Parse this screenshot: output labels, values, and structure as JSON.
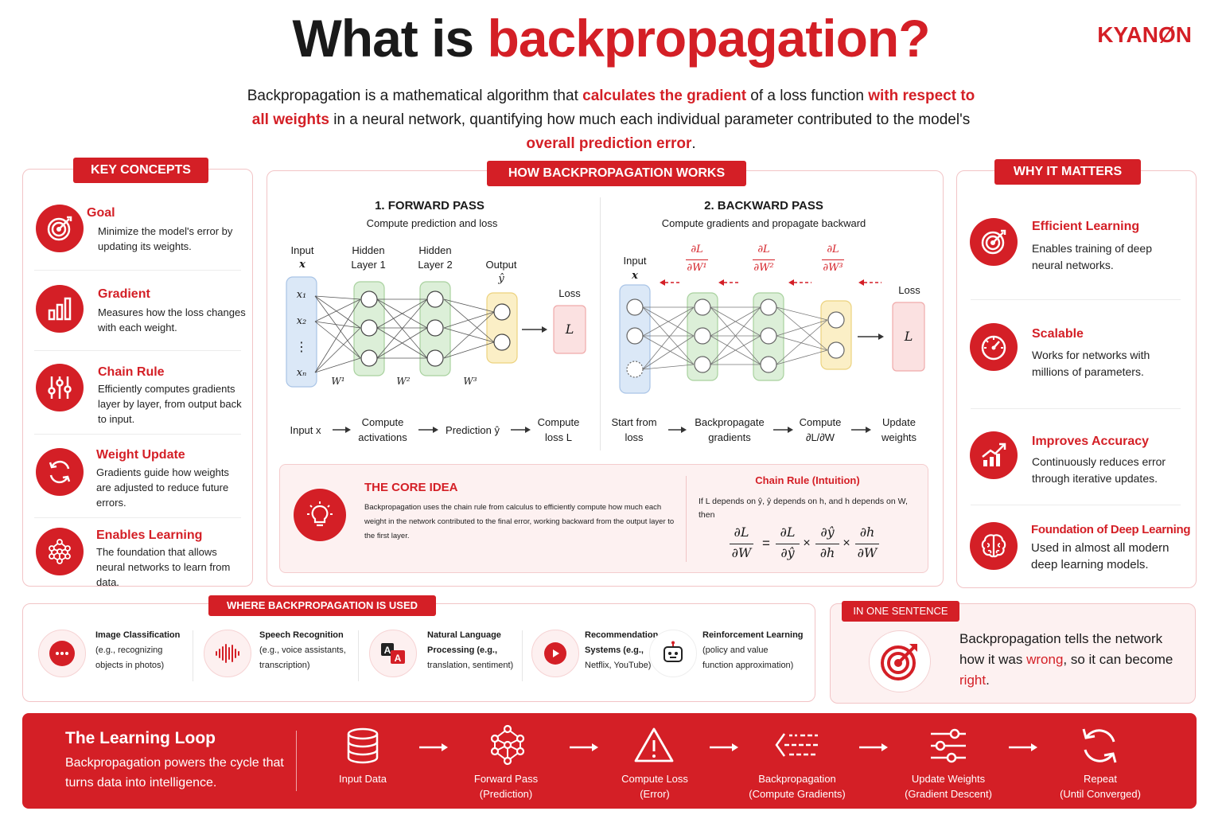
{
  "header": {
    "title_part1": "What is ",
    "title_part2": "backpropagation?",
    "logo": "KYANØN"
  },
  "intro": {
    "s1": "Backpropagation is a mathematical algorithm that ",
    "h1": "calculates the gradient",
    "s2": " of a loss function ",
    "h2": "with respect to all weights",
    "s3": " in a neural network, quantifying how much each individual parameter contributed to the model's ",
    "h3": "overall prediction error",
    "s4": "."
  },
  "key_concepts": {
    "tag": "KEY CONCEPTS",
    "items": [
      {
        "icon": "target-icon",
        "title": "Goal",
        "desc": "Minimize the model's error by updating its weights."
      },
      {
        "icon": "bar-chart-icon",
        "title": "Gradient",
        "desc": "Measures how the loss changes with each weight."
      },
      {
        "icon": "sliders-icon",
        "title": "Chain Rule",
        "desc": "Efficiently computes gradients layer by layer, from output back to input."
      },
      {
        "icon": "refresh-icon",
        "title": "Weight Update",
        "desc": "Gradients guide how weights are adjusted to reduce future errors."
      },
      {
        "icon": "network-icon",
        "title": "Enables Learning",
        "desc": "The foundation that allows neural networks to learn from data."
      }
    ]
  },
  "how": {
    "tag": "HOW BACKPROPAGATION WORKS",
    "forward": {
      "title": "1. FORWARD PASS",
      "subtitle": "Compute prediction and loss",
      "input_label": "Input",
      "input_var": "x",
      "hidden1": "Hidden Layer 1",
      "hidden2": "Hidden Layer 2",
      "output_label": "Output",
      "output_var": "ŷ",
      "loss_label": "Loss",
      "loss_var": "L",
      "x1": "x₁",
      "x2": "x₂",
      "dots": "⋮",
      "xn": "xₙ",
      "w1": "W¹",
      "w2": "W²",
      "w3": "W³",
      "flow": [
        "Input x",
        "Compute activations",
        "Prediction ŷ",
        "Compute loss L"
      ]
    },
    "backward": {
      "title": "2. BACKWARD PASS",
      "subtitle": "Compute gradients and propagate backward",
      "input_label": "Input",
      "input_var": "x",
      "loss_label": "Loss",
      "loss_var": "L",
      "g1_num": "∂L",
      "g1_den": "∂W¹",
      "g2_num": "∂L",
      "g2_den": "∂W²",
      "g3_num": "∂L",
      "g3_den": "∂W³",
      "flow": [
        "Start from loss",
        "Backpropagate gradients",
        "Compute ∂L/∂W",
        "Update weights"
      ]
    },
    "core": {
      "title": "THE CORE IDEA",
      "text": "Backpropagation uses the chain rule from calculus to efficiently compute how much each weight in the network contributed to the final error, working backward from the output layer to the first layer.",
      "chain_title": "Chain Rule (Intuition)",
      "chain_text": "If L depends on ŷ, ŷ depends on h, and h depends on W, then",
      "f_lhs_num": "∂L",
      "f_lhs_den": "∂W",
      "f_a_num": "∂L",
      "f_a_den": "∂ŷ",
      "f_b_num": "∂ŷ",
      "f_b_den": "∂h",
      "f_c_num": "∂h",
      "f_c_den": "∂W",
      "eq": "=",
      "times": "×"
    }
  },
  "why": {
    "tag": "WHY IT MATTERS",
    "items": [
      {
        "icon": "target-icon",
        "title": "Efficient Learning",
        "desc": "Enables training of deep neural networks."
      },
      {
        "icon": "gauge-icon",
        "title": "Scalable",
        "desc": "Works for networks with millions of parameters."
      },
      {
        "icon": "growth-chart-icon",
        "title": "Improves Accuracy",
        "desc": "Continuously reduces error through iterative updates."
      },
      {
        "icon": "brain-icon",
        "title": "Foundation of Deep Learning",
        "desc": "Used in almost all modern deep learning models."
      }
    ]
  },
  "used": {
    "tag": "WHERE BACKPROPAGATION IS USED",
    "items": [
      {
        "icon": "chat-icon",
        "title": "Image Classification",
        "desc": [
          "(e.g., recognizing",
          "objects in photos)"
        ]
      },
      {
        "icon": "audio-wave-icon",
        "title": "Speech Recognition",
        "desc": [
          "(e.g., voice assistants,",
          "transcription)"
        ]
      },
      {
        "icon": "translate-icon",
        "title": "Natural Language",
        "title2": "Processing (e.g.,",
        "desc": [
          "translation, sentiment)"
        ]
      },
      {
        "icon": "play-icon",
        "title": "Recommendation",
        "title2": "Systems (e.g.,",
        "desc": [
          "Netflix, YouTube)"
        ]
      },
      {
        "icon": "robot-icon",
        "title": "Reinforcement Learning",
        "desc": [
          "(policy and value",
          "function approximation)"
        ]
      }
    ]
  },
  "sentence": {
    "tag": "IN ONE SENTENCE",
    "p1": "Backpropagation tells the network how it was ",
    "w1": "wrong",
    "p2": ", so it can become ",
    "w2": "right",
    "p3": "."
  },
  "loop": {
    "title": "The Learning Loop",
    "subtitle": "Backpropagation powers the cycle that turns data into intelligence.",
    "steps": [
      {
        "icon": "database-icon",
        "l1": "Input Data",
        "l2": ""
      },
      {
        "icon": "network-icon",
        "l1": "Forward Pass",
        "l2": "(Prediction)"
      },
      {
        "icon": "warning-icon",
        "l1": "Compute Loss",
        "l2": "(Error)"
      },
      {
        "icon": "backward-arrows-icon",
        "l1": "Backpropagation",
        "l2": "(Compute Gradients)"
      },
      {
        "icon": "sliders-icon",
        "l1": "Update Weights",
        "l2": "(Gradient Descent)"
      },
      {
        "icon": "refresh-icon",
        "l1": "Repeat",
        "l2": "(Until Converged)"
      }
    ]
  },
  "colors": {
    "accent": "#d41f26",
    "panel_border": "#f2c4c6",
    "input_layer": "#dbe8f7",
    "hidden_layer": "#dcefd8",
    "output_layer": "#fbefc6",
    "loss_box": "#fbe1e1"
  }
}
